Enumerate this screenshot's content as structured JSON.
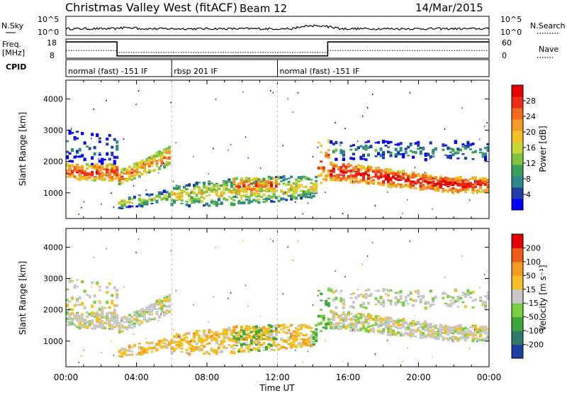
{
  "header": {
    "title": "Christmas Valley West (fitACF)",
    "beam": "Beam 12",
    "date": "14/Mar/2015"
  },
  "nsky_panel": {
    "label": "N.Sky",
    "right_label": "N.Search",
    "left_ticks": [
      "10^5",
      "10^0"
    ],
    "right_ticks": [
      "10^5",
      "10^0"
    ]
  },
  "freq_panel": {
    "label_line1": "Freq.",
    "label_line2": "[MHz]",
    "right_label": "Nave",
    "left_ticks": [
      "18",
      "8"
    ],
    "right_ticks": [
      "60",
      "0"
    ]
  },
  "cpid_panel": {
    "label": "CPID",
    "segments": [
      {
        "start_hour": 0,
        "end_hour": 6,
        "label": "normal (fast) -151 IF"
      },
      {
        "start_hour": 6,
        "end_hour": 12,
        "label": "rbsp 201 IF"
      },
      {
        "start_hour": 12,
        "end_hour": 24,
        "label": "normal (fast) -151 IF"
      }
    ]
  },
  "chart_data": [
    {
      "type": "heatmap",
      "name": "power",
      "ylabel": "Slant Range [km]",
      "xlim_hours": [
        0,
        24
      ],
      "ylim_km": [
        180,
        4600
      ],
      "y_ticks": [
        1000,
        2000,
        3000,
        4000
      ],
      "colorbar": {
        "label": "Power [dB]",
        "ticks": [
          "28",
          "24",
          "20",
          "16",
          "12",
          "8",
          "4"
        ],
        "colors": [
          "#0000ff",
          "#1f3fa8",
          "#2e8a8a",
          "#3aa05a",
          "#7cc43e",
          "#c8d43a",
          "#f5c023",
          "#f59a22",
          "#f36a1e",
          "#ee2b14",
          "#e60000"
        ]
      }
    },
    {
      "type": "heatmap",
      "name": "velocity",
      "ylabel": "Slant Range [km]",
      "xlabel": "Time UT",
      "xlim_hours": [
        0,
        24
      ],
      "ylim_km": [
        180,
        4600
      ],
      "y_ticks": [
        1000,
        2000,
        3000,
        4000
      ],
      "x_ticks": [
        "00:00",
        "04:00",
        "08:00",
        "12:00",
        "16:00",
        "20:00",
        "00:00"
      ],
      "colorbar": {
        "label": "Velocity [m s⁻¹]",
        "ticks": [
          "200",
          "100",
          "50",
          "15",
          "-15",
          "-50",
          "-100",
          "-200"
        ],
        "colors": [
          "#1e3ea8",
          "#2f7a6a",
          "#3aa83a",
          "#78d040",
          "#c8c8c8",
          "#f5c023",
          "#f59a22",
          "#ee5a18",
          "#e60000"
        ]
      }
    }
  ]
}
